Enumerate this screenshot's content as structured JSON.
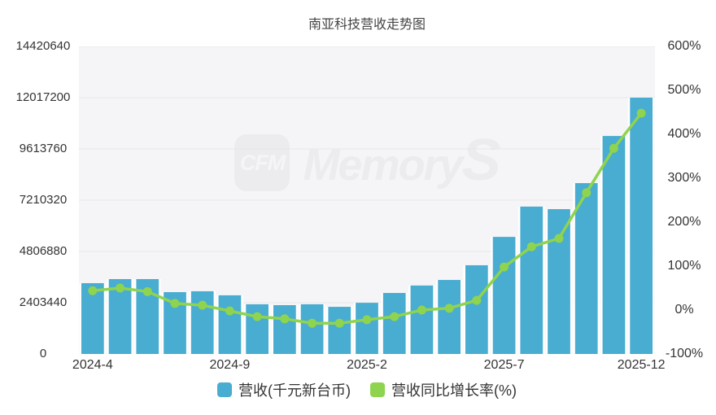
{
  "title": "南亚科技营收走势图",
  "watermark": {
    "badge": "CFM",
    "brand": "Memory",
    "brand_s": "S"
  },
  "colors": {
    "bar": "#49acd1",
    "line": "#8ed44e",
    "plot_bg": "#f5f5f7",
    "grid": "#e6e6e9",
    "bar_gap": "#ffffff",
    "axis_text": "#333333",
    "title_text": "#454545",
    "watermark": "#ececef",
    "page_bg": "#ffffff"
  },
  "legend": [
    {
      "label": "营收(千元新台币)",
      "color": "#49acd1"
    },
    {
      "label": "营收同比增长率(%)",
      "color": "#8ed44e"
    }
  ],
  "axes": {
    "left_ticks": [
      "14420640",
      "12017200",
      "9613760",
      "7210320",
      "4806880",
      "2403440",
      "0"
    ],
    "right_ticks": [
      "600%",
      "500%",
      "400%",
      "300%",
      "200%",
      "100%",
      "0%",
      "-100%"
    ],
    "x_ticks": [
      {
        "label": "2024-4",
        "index": 0
      },
      {
        "label": "2024-9",
        "index": 5
      },
      {
        "label": "2025-2",
        "index": 10
      },
      {
        "label": "2025-7",
        "index": 15
      },
      {
        "label": "2025-12",
        "index": 20
      }
    ]
  },
  "chart_data": {
    "type": "bar+line",
    "title": "南亚科技营收走势图",
    "categories": [
      "2024-4",
      "2024-5",
      "2024-6",
      "2024-7",
      "2024-8",
      "2024-9",
      "2024-10",
      "2024-11",
      "2024-12",
      "2025-1",
      "2025-2",
      "2025-3",
      "2025-4",
      "2025-5",
      "2025-6",
      "2025-7",
      "2025-8",
      "2025-9",
      "2025-10",
      "2025-11",
      "2025-12"
    ],
    "series": [
      {
        "name": "营收(千元新台币)",
        "type": "bar",
        "axis": "left",
        "values": [
          3320000,
          3510000,
          3510000,
          2900000,
          2940000,
          2750000,
          2330000,
          2290000,
          2330000,
          2210000,
          2400000,
          2860000,
          3210000,
          3470000,
          4160000,
          5490000,
          6910000,
          6790000,
          8010000,
          10220000,
          12017200
        ]
      },
      {
        "name": "营收同比增长率(%)",
        "type": "line",
        "axis": "right",
        "values": [
          44,
          50,
          42,
          15,
          11,
          -2,
          -15,
          -20,
          -30,
          -30,
          -22,
          -15,
          0,
          4,
          22,
          98,
          144,
          163,
          267,
          368,
          448
        ]
      }
    ],
    "left_axis": {
      "min": 0,
      "max": 14420640,
      "interval": 2403440
    },
    "right_axis": {
      "min": -100,
      "max": 600,
      "interval": 100,
      "unit": "%"
    },
    "grid": true,
    "legend_position": "bottom"
  }
}
